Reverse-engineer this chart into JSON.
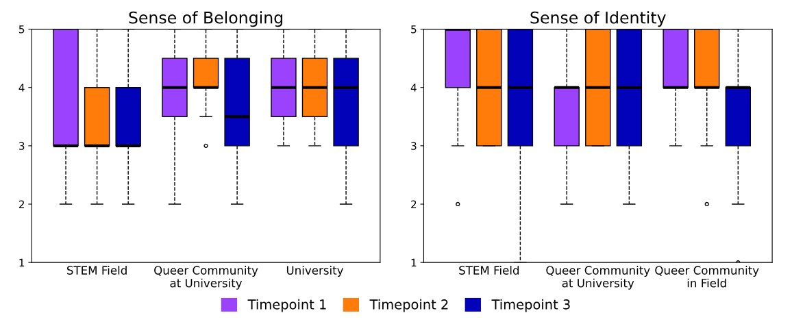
{
  "chart_data": [
    {
      "type": "box",
      "title": "Sense of Belonging",
      "categories": [
        "STEM Field",
        "Queer Community\nat University",
        "University"
      ],
      "ylim": [
        1,
        5
      ],
      "yticks": [
        1,
        2,
        3,
        4,
        5
      ],
      "grid": false,
      "legend": "bottom",
      "line_style": "dashed",
      "series": [
        {
          "name": "Timepoint 1",
          "color": "#9b42ff",
          "boxes": [
            {
              "low": 2,
              "q1": 3,
              "median": 3,
              "q3": 5,
              "high": 5
            },
            {
              "low": 2,
              "q1": 3.5,
              "median": 4,
              "q3": 4.5,
              "high": 5
            },
            {
              "low": 3,
              "q1": 3.5,
              "median": 4,
              "q3": 4.5,
              "high": 5
            }
          ]
        },
        {
          "name": "Timepoint 2",
          "color": "#ff7b0a",
          "boxes": [
            {
              "low": 2,
              "q1": 3,
              "median": 3,
              "q3": 4,
              "high": 5
            },
            {
              "low": 3.5,
              "q1": 4,
              "median": 4,
              "q3": 4.5,
              "high": 5,
              "outliers": [
                3
              ]
            },
            {
              "low": 3,
              "q1": 3.5,
              "median": 4,
              "q3": 4.5,
              "high": 5
            }
          ]
        },
        {
          "name": "Timepoint 3",
          "color": "#0202b8",
          "boxes": [
            {
              "low": 2,
              "q1": 3,
              "median": 3,
              "q3": 4,
              "high": 5
            },
            {
              "low": 2,
              "q1": 3,
              "median": 3.5,
              "q3": 4.5,
              "high": 5
            },
            {
              "low": 2,
              "q1": 3,
              "median": 4,
              "q3": 4.5,
              "high": 5
            }
          ]
        }
      ]
    },
    {
      "type": "box",
      "title": "Sense of Identity",
      "categories": [
        "STEM Field",
        "Queer Community\nat University",
        "Queer Community\nin Field"
      ],
      "ylim": [
        1,
        5
      ],
      "yticks": [
        1,
        2,
        3,
        4,
        5
      ],
      "grid": false,
      "legend": "bottom",
      "line_style": "dashed",
      "series": [
        {
          "color": "#9b42ff",
          "boxes": [
            {
              "low": 3,
              "q1": 4,
              "median": 5,
              "q3": 5,
              "high": 5,
              "outliers": [
                2
              ]
            },
            {
              "low": 2,
              "q1": 3,
              "median": 4,
              "q3": 4,
              "high": 5
            },
            {
              "low": 3,
              "q1": 4,
              "median": 4,
              "q3": 5,
              "high": 5
            }
          ]
        },
        {
          "color": "#ff7b0a",
          "boxes": [
            {
              "low": 3,
              "q1": 3,
              "median": 4,
              "q3": 5,
              "high": 5
            },
            {
              "low": 3,
              "q1": 3,
              "median": 4,
              "q3": 5,
              "high": 5
            },
            {
              "low": 3,
              "q1": 4,
              "median": 4,
              "q3": 5,
              "high": 5,
              "outliers": [
                2
              ]
            }
          ]
        },
        {
          "color": "#0202b8",
          "boxes": [
            {
              "low": 1,
              "q1": 3,
              "median": 4,
              "q3": 5,
              "high": 5
            },
            {
              "low": 2,
              "q1": 3,
              "median": 4,
              "q3": 5,
              "high": 5
            },
            {
              "low": 2,
              "q1": 3,
              "median": 4,
              "q3": 4,
              "high": 5,
              "outliers": [
                1
              ]
            }
          ]
        }
      ]
    }
  ]
}
